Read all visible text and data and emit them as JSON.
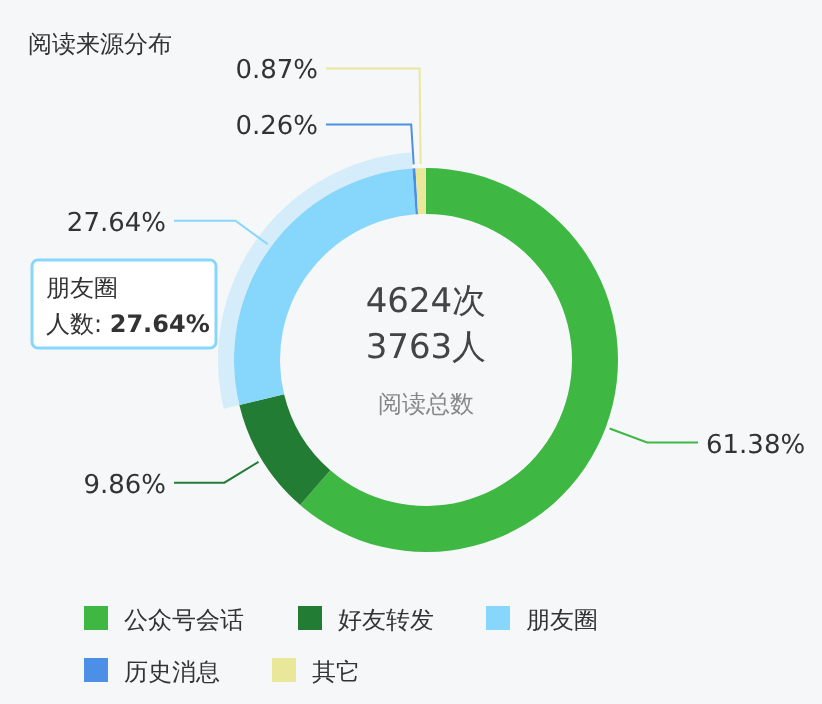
{
  "chart_data": {
    "type": "donut",
    "title": "阅读来源分布",
    "categories": [
      "公众号会话",
      "好友转发",
      "朋友圈",
      "历史消息",
      "其它"
    ],
    "values": [
      61.38,
      9.86,
      27.64,
      0.26,
      0.87
    ],
    "value_labels": [
      "61.38%",
      "9.86%",
      "27.64%",
      "0.26%",
      "0.87%"
    ],
    "colors": [
      "#3eb843",
      "#237c34",
      "#87d6fb",
      "#4b8fe6",
      "#e9e89a"
    ],
    "legend": "bottom",
    "annotations": [
      "4624次",
      "3763人",
      "阅读总数",
      "朋友圈",
      "人数: **27.64%**"
    ]
  }
}
